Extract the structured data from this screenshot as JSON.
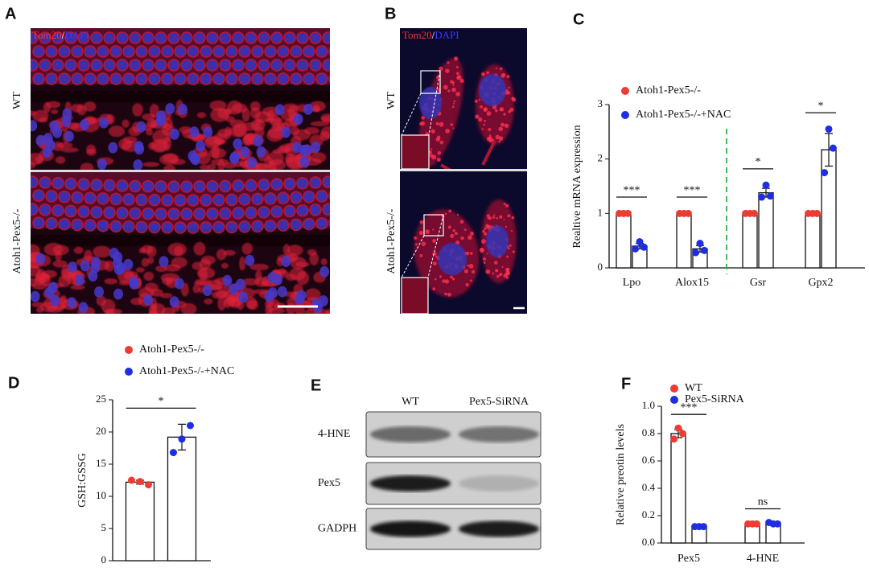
{
  "panels": {
    "A": {
      "letter": "A",
      "stain": [
        "Tom20",
        "/",
        "DAPI"
      ],
      "rows": [
        "WT",
        "Atoh1-Pex5-/-"
      ]
    },
    "B": {
      "letter": "B",
      "stain": [
        "Tom20",
        "/",
        "DAPI"
      ],
      "rows": [
        "WT",
        "Atoh1-Pex5-/-"
      ]
    },
    "E": {
      "letter": "E",
      "columns": [
        "WT",
        "Pex5-SiRNA"
      ],
      "rows": [
        "4-HNE",
        "Pex5",
        "GADPH"
      ]
    }
  },
  "chart_data": [
    {
      "type": "bar",
      "panel": "C",
      "ylabel": "Realtive mRNA expression",
      "categories": [
        "Lpo",
        "Alox15",
        "Gsr",
        "Gpx2"
      ],
      "series": [
        {
          "name": "Atoh1-Pex5-/-",
          "color": "#ee3b33",
          "values": [
            1,
            1,
            1,
            1
          ],
          "errors": [
            0,
            0,
            0,
            0
          ],
          "points": [
            [
              1,
              1,
              1
            ],
            [
              1,
              1,
              1
            ],
            [
              1,
              1,
              1
            ],
            [
              1,
              1,
              1
            ]
          ]
        },
        {
          "name": "Atoh1-Pex5-/-+NAC",
          "color": "#1f2ee0",
          "values": [
            0.4,
            0.35,
            1.38,
            2.17
          ],
          "errors": [
            0.05,
            0.06,
            0.08,
            0.3
          ],
          "points": [
            [
              0.35,
              0.48,
              0.38
            ],
            [
              0.28,
              0.45,
              0.32
            ],
            [
              1.3,
              1.52,
              1.32
            ],
            [
              1.75,
              2.55,
              2.2
            ]
          ]
        }
      ],
      "significance": [
        "***",
        "***",
        "*",
        "*"
      ],
      "ylim": [
        0,
        3
      ],
      "yticks": [
        0,
        1,
        2,
        3
      ]
    },
    {
      "type": "bar",
      "panel": "D",
      "ylabel": "GSH:GSSG",
      "categories": [
        null
      ],
      "series": [
        {
          "name": "Atoh1-Pex5-/-",
          "color": "#ee3b33",
          "values": [
            12.2
          ],
          "errors": [
            0.3
          ],
          "points": [
            [
              12.5,
              12.3,
              11.8
            ]
          ]
        },
        {
          "name": "Atoh1-Pex5-/-+NAC",
          "color": "#1f2ee0",
          "values": [
            19.2
          ],
          "errors": [
            2
          ],
          "points": [
            [
              16.8,
              18.9,
              21
            ]
          ]
        }
      ],
      "significance": [
        "*"
      ],
      "ylim": [
        0,
        25
      ],
      "yticks": [
        0,
        5,
        10,
        15,
        20,
        25
      ]
    },
    {
      "type": "bar",
      "panel": "F",
      "ylabel": "Relative preotin levels",
      "categories": [
        "Pex5",
        "4-HNE"
      ],
      "series": [
        {
          "name": "WT",
          "color": "#ee3b33",
          "values": [
            0.8,
            0.14
          ],
          "errors": [
            0.03,
            0.005
          ],
          "points": [
            [
              0.76,
              0.84,
              0.8
            ],
            [
              0.14,
              0.14,
              0.14
            ]
          ]
        },
        {
          "name": "Pex5-SiRNA",
          "color": "#1f2ee0",
          "values": [
            0.12,
            0.14
          ],
          "errors": [
            0.003,
            0.01
          ],
          "points": [
            [
              0.12,
              0.12,
              0.12
            ],
            [
              0.15,
              0.14,
              0.14
            ]
          ]
        }
      ],
      "significance": [
        "***",
        "ns"
      ],
      "ylim": [
        0,
        1.0
      ],
      "yticks": [
        {
          "value": 0,
          "label": "0.0"
        },
        0.2,
        0.4,
        0.6,
        0.8,
        {
          "value": 1.0,
          "label": "1.0"
        }
      ]
    }
  ]
}
